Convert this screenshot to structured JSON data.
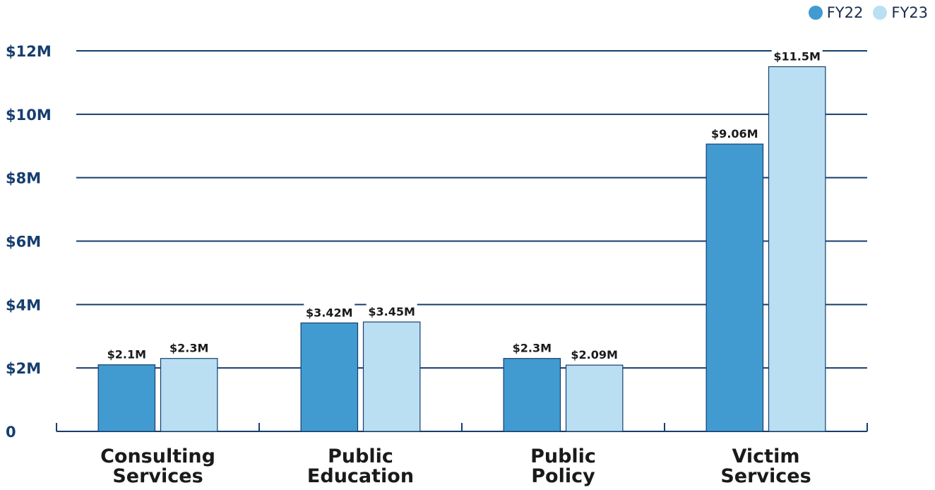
{
  "legend": {
    "items": [
      {
        "label": "FY22",
        "color": "#419bd1"
      },
      {
        "label": "FY23",
        "color": "#badff2"
      }
    ]
  },
  "chart_data": {
    "type": "bar",
    "categories": [
      [
        "Consulting",
        "Services"
      ],
      [
        "Public",
        "Education"
      ],
      [
        "Public",
        "Policy"
      ],
      [
        "Victim",
        "Services"
      ]
    ],
    "series": [
      {
        "name": "FY22",
        "values": [
          2.1,
          3.42,
          2.3,
          9.06
        ],
        "labels": [
          "$2.1M",
          "$3.42M",
          "$2.3M",
          "$9.06M"
        ],
        "color": "#419bd1"
      },
      {
        "name": "FY23",
        "values": [
          2.3,
          3.45,
          2.09,
          11.5
        ],
        "labels": [
          "$2.3M",
          "$3.45M",
          "$2.09M",
          "$11.5M"
        ],
        "color": "#badff2"
      }
    ],
    "ylim": [
      0,
      12
    ],
    "yticks": [
      0,
      2,
      4,
      6,
      8,
      10,
      12
    ],
    "ytick_labels": [
      "0",
      "$2M",
      "$4M",
      "$6M",
      "$8M",
      "$10M",
      "$12M"
    ],
    "grid": true,
    "legend_position": "top-right",
    "colors": {
      "grid": "#163e6e",
      "axis_text": "#163e6e",
      "category_text": "#1a1a1a",
      "bar_edge": "#163e6e"
    }
  }
}
